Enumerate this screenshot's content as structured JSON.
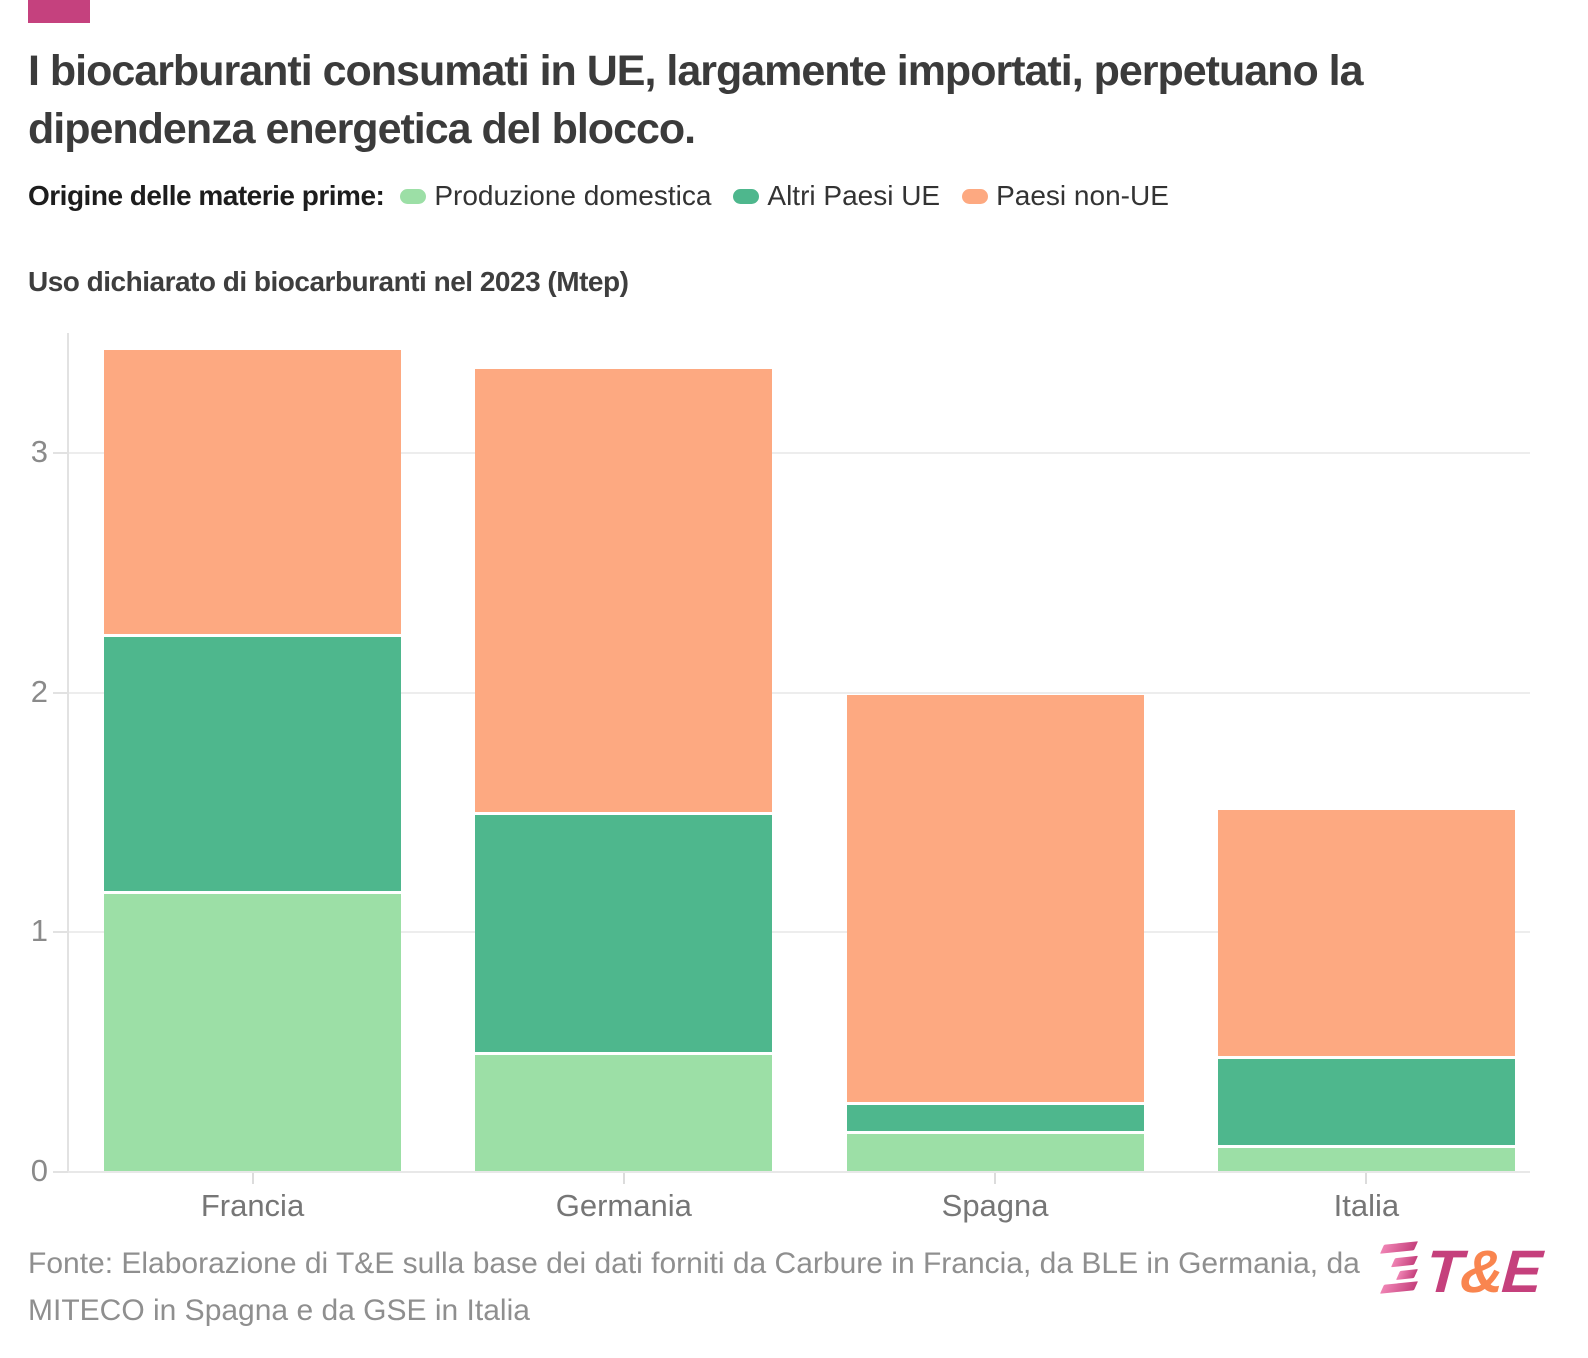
{
  "header": {
    "kicker_color": "#c5417e",
    "title": "I biocarburanti consumati in UE, largamente importati, perpetuano la dipendenza energetica del blocco."
  },
  "legend": {
    "label": "Origine delle materie prime:",
    "items": [
      {
        "label": "Produzione domestica",
        "color": "#9cdfa6"
      },
      {
        "label": "Altri Paesi UE",
        "color": "#4eb78d"
      },
      {
        "label": "Paesi non-UE",
        "color": "#fda981"
      }
    ]
  },
  "chart_data": {
    "type": "bar",
    "stacked": true,
    "title": "Uso dichiarato di biocarburanti nel 2023 (Mtep)",
    "categories": [
      "Francia",
      "Germania",
      "Spagna",
      "Italia"
    ],
    "series": [
      {
        "name": "Produzione domestica",
        "color": "#9cdfa6",
        "values": [
          1.16,
          0.49,
          0.16,
          0.1
        ]
      },
      {
        "name": "Altri Paesi UE",
        "color": "#4eb78d",
        "values": [
          1.07,
          1.0,
          0.12,
          0.37
        ]
      },
      {
        "name": "Paesi non-UE",
        "color": "#fda981",
        "values": [
          1.2,
          1.86,
          1.71,
          1.04
        ]
      }
    ],
    "totals": [
      3.43,
      3.35,
      1.99,
      1.51
    ],
    "unit": "Mtep",
    "ylabel": "",
    "xlabel": "",
    "ylim": [
      0,
      3.5
    ],
    "yticks": [
      0,
      1,
      2,
      3
    ],
    "grid": true,
    "legend_position": "top"
  },
  "footer": {
    "source": "Fonte: Elaborazione di T&E sulla base dei dati forniti da Carbure in Francia, da BLE in Germania, da MITECO in Spagna e da GSE in Italia",
    "logo": {
      "text_t": "T",
      "text_amp": "&",
      "text_e": "E",
      "magenta": "#c5407c",
      "orange": "#f9854f"
    }
  }
}
